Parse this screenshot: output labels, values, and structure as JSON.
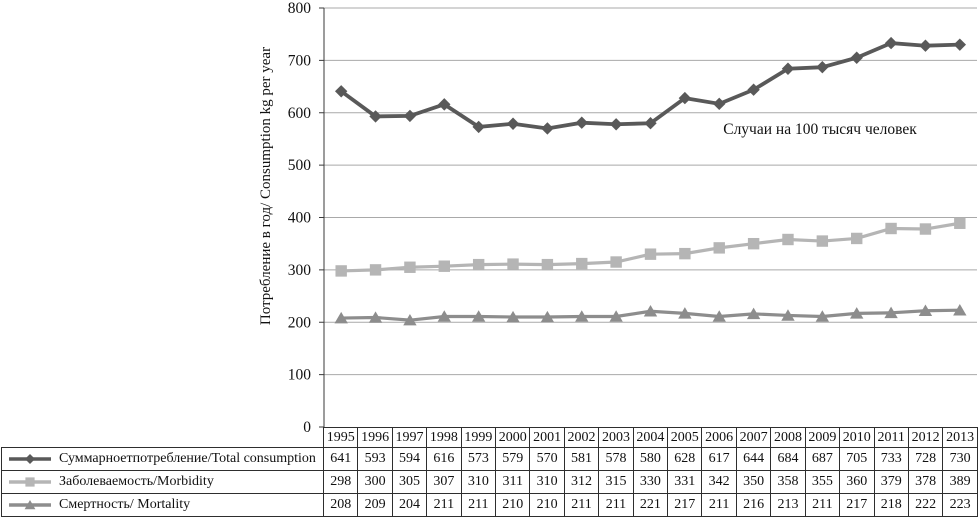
{
  "chart_data": {
    "type": "line",
    "title": "",
    "ylabel": "Потребление в год/ Consumption kg per year",
    "xlabel": "",
    "annotation": "Случаи на 100 тысяч человек",
    "ylim": [
      0,
      800
    ],
    "ytick_step": 100,
    "grid": true,
    "legend_position": "table-left",
    "categories": [
      "1995",
      "1996",
      "1997",
      "1998",
      "1999",
      "2000",
      "2001",
      "2002",
      "2003",
      "2004",
      "2005",
      "2006",
      "2007",
      "2008",
      "2009",
      "2010",
      "2011",
      "2012",
      "2013"
    ],
    "series": [
      {
        "name": "Суммарноетпотребление/Total consumption",
        "marker": "diamond",
        "color": "#595959",
        "values": [
          641,
          593,
          594,
          616,
          573,
          579,
          570,
          581,
          578,
          580,
          628,
          617,
          644,
          684,
          687,
          705,
          733,
          728,
          730
        ]
      },
      {
        "name": "Заболеваемость/Morbidity",
        "marker": "square",
        "color": "#b5b5b5",
        "values": [
          298,
          300,
          305,
          307,
          310,
          311,
          310,
          312,
          315,
          330,
          331,
          342,
          350,
          358,
          355,
          360,
          379,
          378,
          389
        ]
      },
      {
        "name": "Смертность/ Mortality",
        "marker": "triangle",
        "color": "#8d8d8d",
        "values": [
          208,
          209,
          204,
          211,
          211,
          210,
          210,
          211,
          211,
          221,
          217,
          211,
          216,
          213,
          211,
          217,
          218,
          222,
          223
        ]
      }
    ]
  },
  "colors": {
    "gridline": "#a9a9a9",
    "axis": "#3a3a3a",
    "table_border": "#2e2e2e",
    "text": "#111111"
  }
}
